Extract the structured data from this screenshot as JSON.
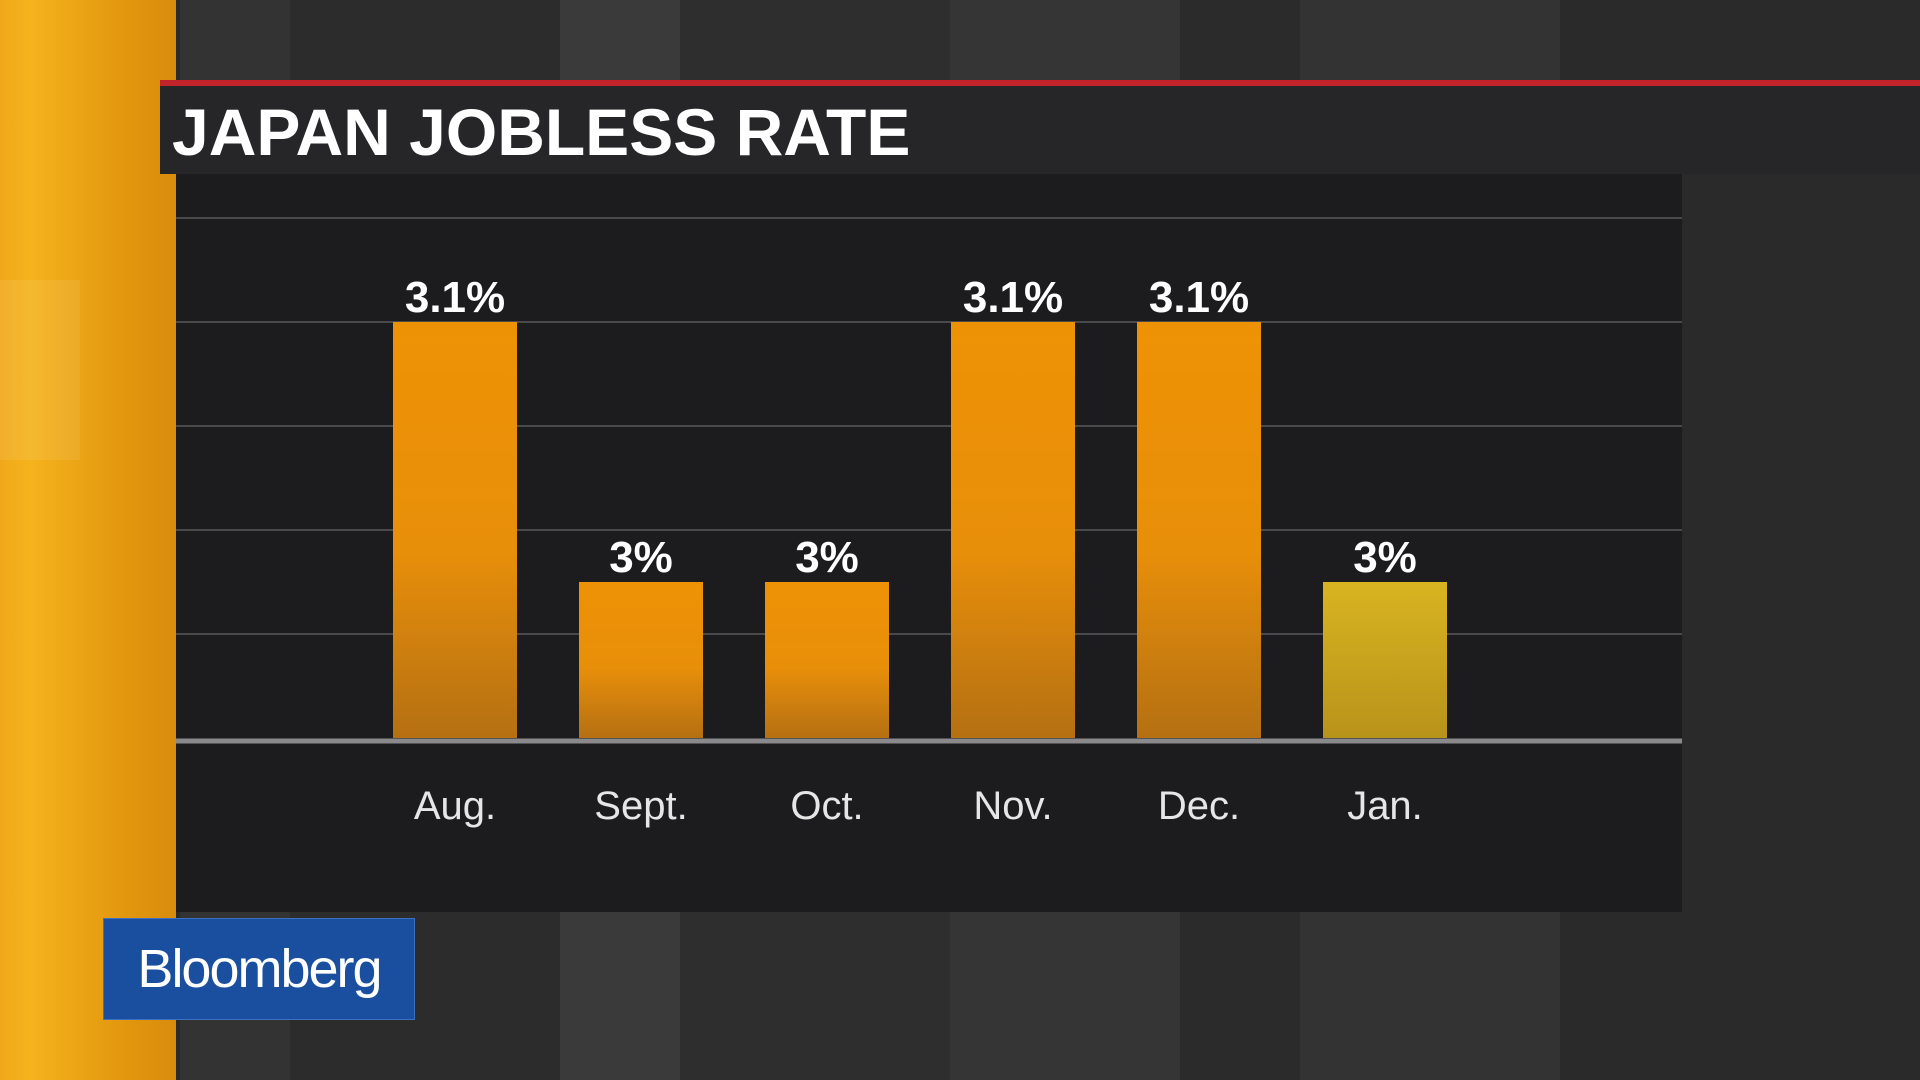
{
  "title": "JAPAN JOBLESS RATE",
  "brand": {
    "logo_text": "Bloomberg",
    "logo_color": "#1a4fa0"
  },
  "colors": {
    "bar": "#e88f0a",
    "bar_highlight": "#cfaa1e",
    "header_rule": "#c3232b",
    "panel": "#1c1c1f"
  },
  "chart_data": {
    "type": "bar",
    "title": "JAPAN JOBLESS RATE",
    "categories": [
      "Aug.",
      "Sept.",
      "Oct.",
      "Nov.",
      "Dec.",
      "Jan."
    ],
    "values": [
      3.1,
      3.0,
      3.0,
      3.1,
      3.1,
      3.0
    ],
    "data_labels": [
      "3.1%",
      "3%",
      "3%",
      "3.1%",
      "3.1%",
      "3%"
    ],
    "highlight_index": 5,
    "ylim": [
      2.94,
      3.14
    ],
    "grid": true,
    "legend": "none",
    "xlabel": "",
    "ylabel": ""
  }
}
